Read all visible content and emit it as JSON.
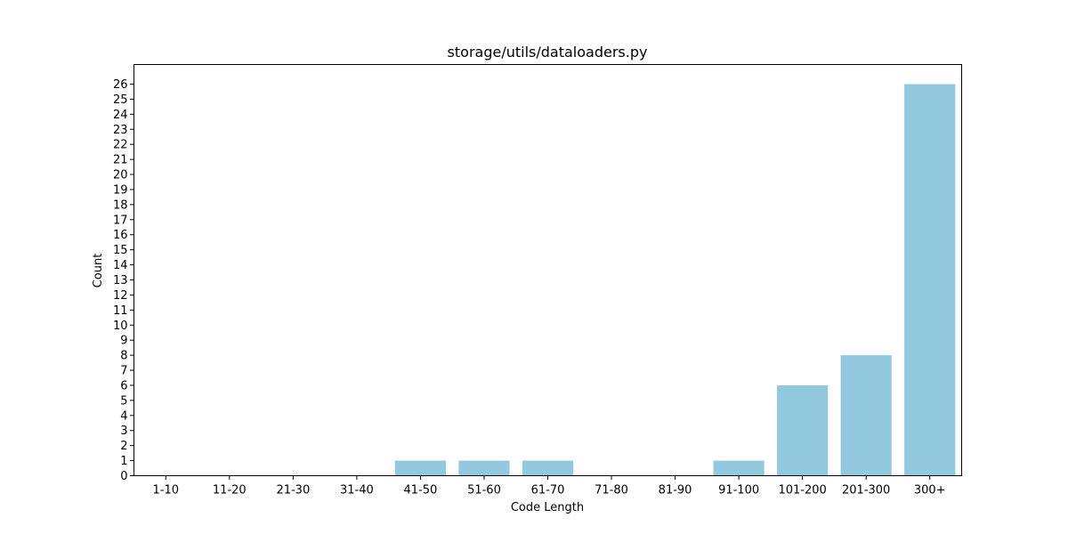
{
  "chart_data": {
    "type": "bar",
    "title": "storage/utils/dataloaders.py",
    "xlabel": "Code Length",
    "ylabel": "Count",
    "categories": [
      "1-10",
      "11-20",
      "21-30",
      "31-40",
      "41-50",
      "51-60",
      "61-70",
      "71-80",
      "81-90",
      "91-100",
      "101-200",
      "201-300",
      "300+"
    ],
    "values": [
      0,
      0,
      0,
      0,
      1,
      1,
      1,
      0,
      0,
      1,
      6,
      8,
      26
    ],
    "ylim": [
      0,
      27.3
    ],
    "yticks": [
      0,
      1,
      2,
      3,
      4,
      5,
      6,
      7,
      8,
      9,
      10,
      11,
      12,
      13,
      14,
      15,
      16,
      17,
      18,
      19,
      20,
      21,
      22,
      23,
      24,
      25,
      26
    ],
    "bar_color": "#92c9df",
    "grid": false,
    "legend": "none"
  }
}
